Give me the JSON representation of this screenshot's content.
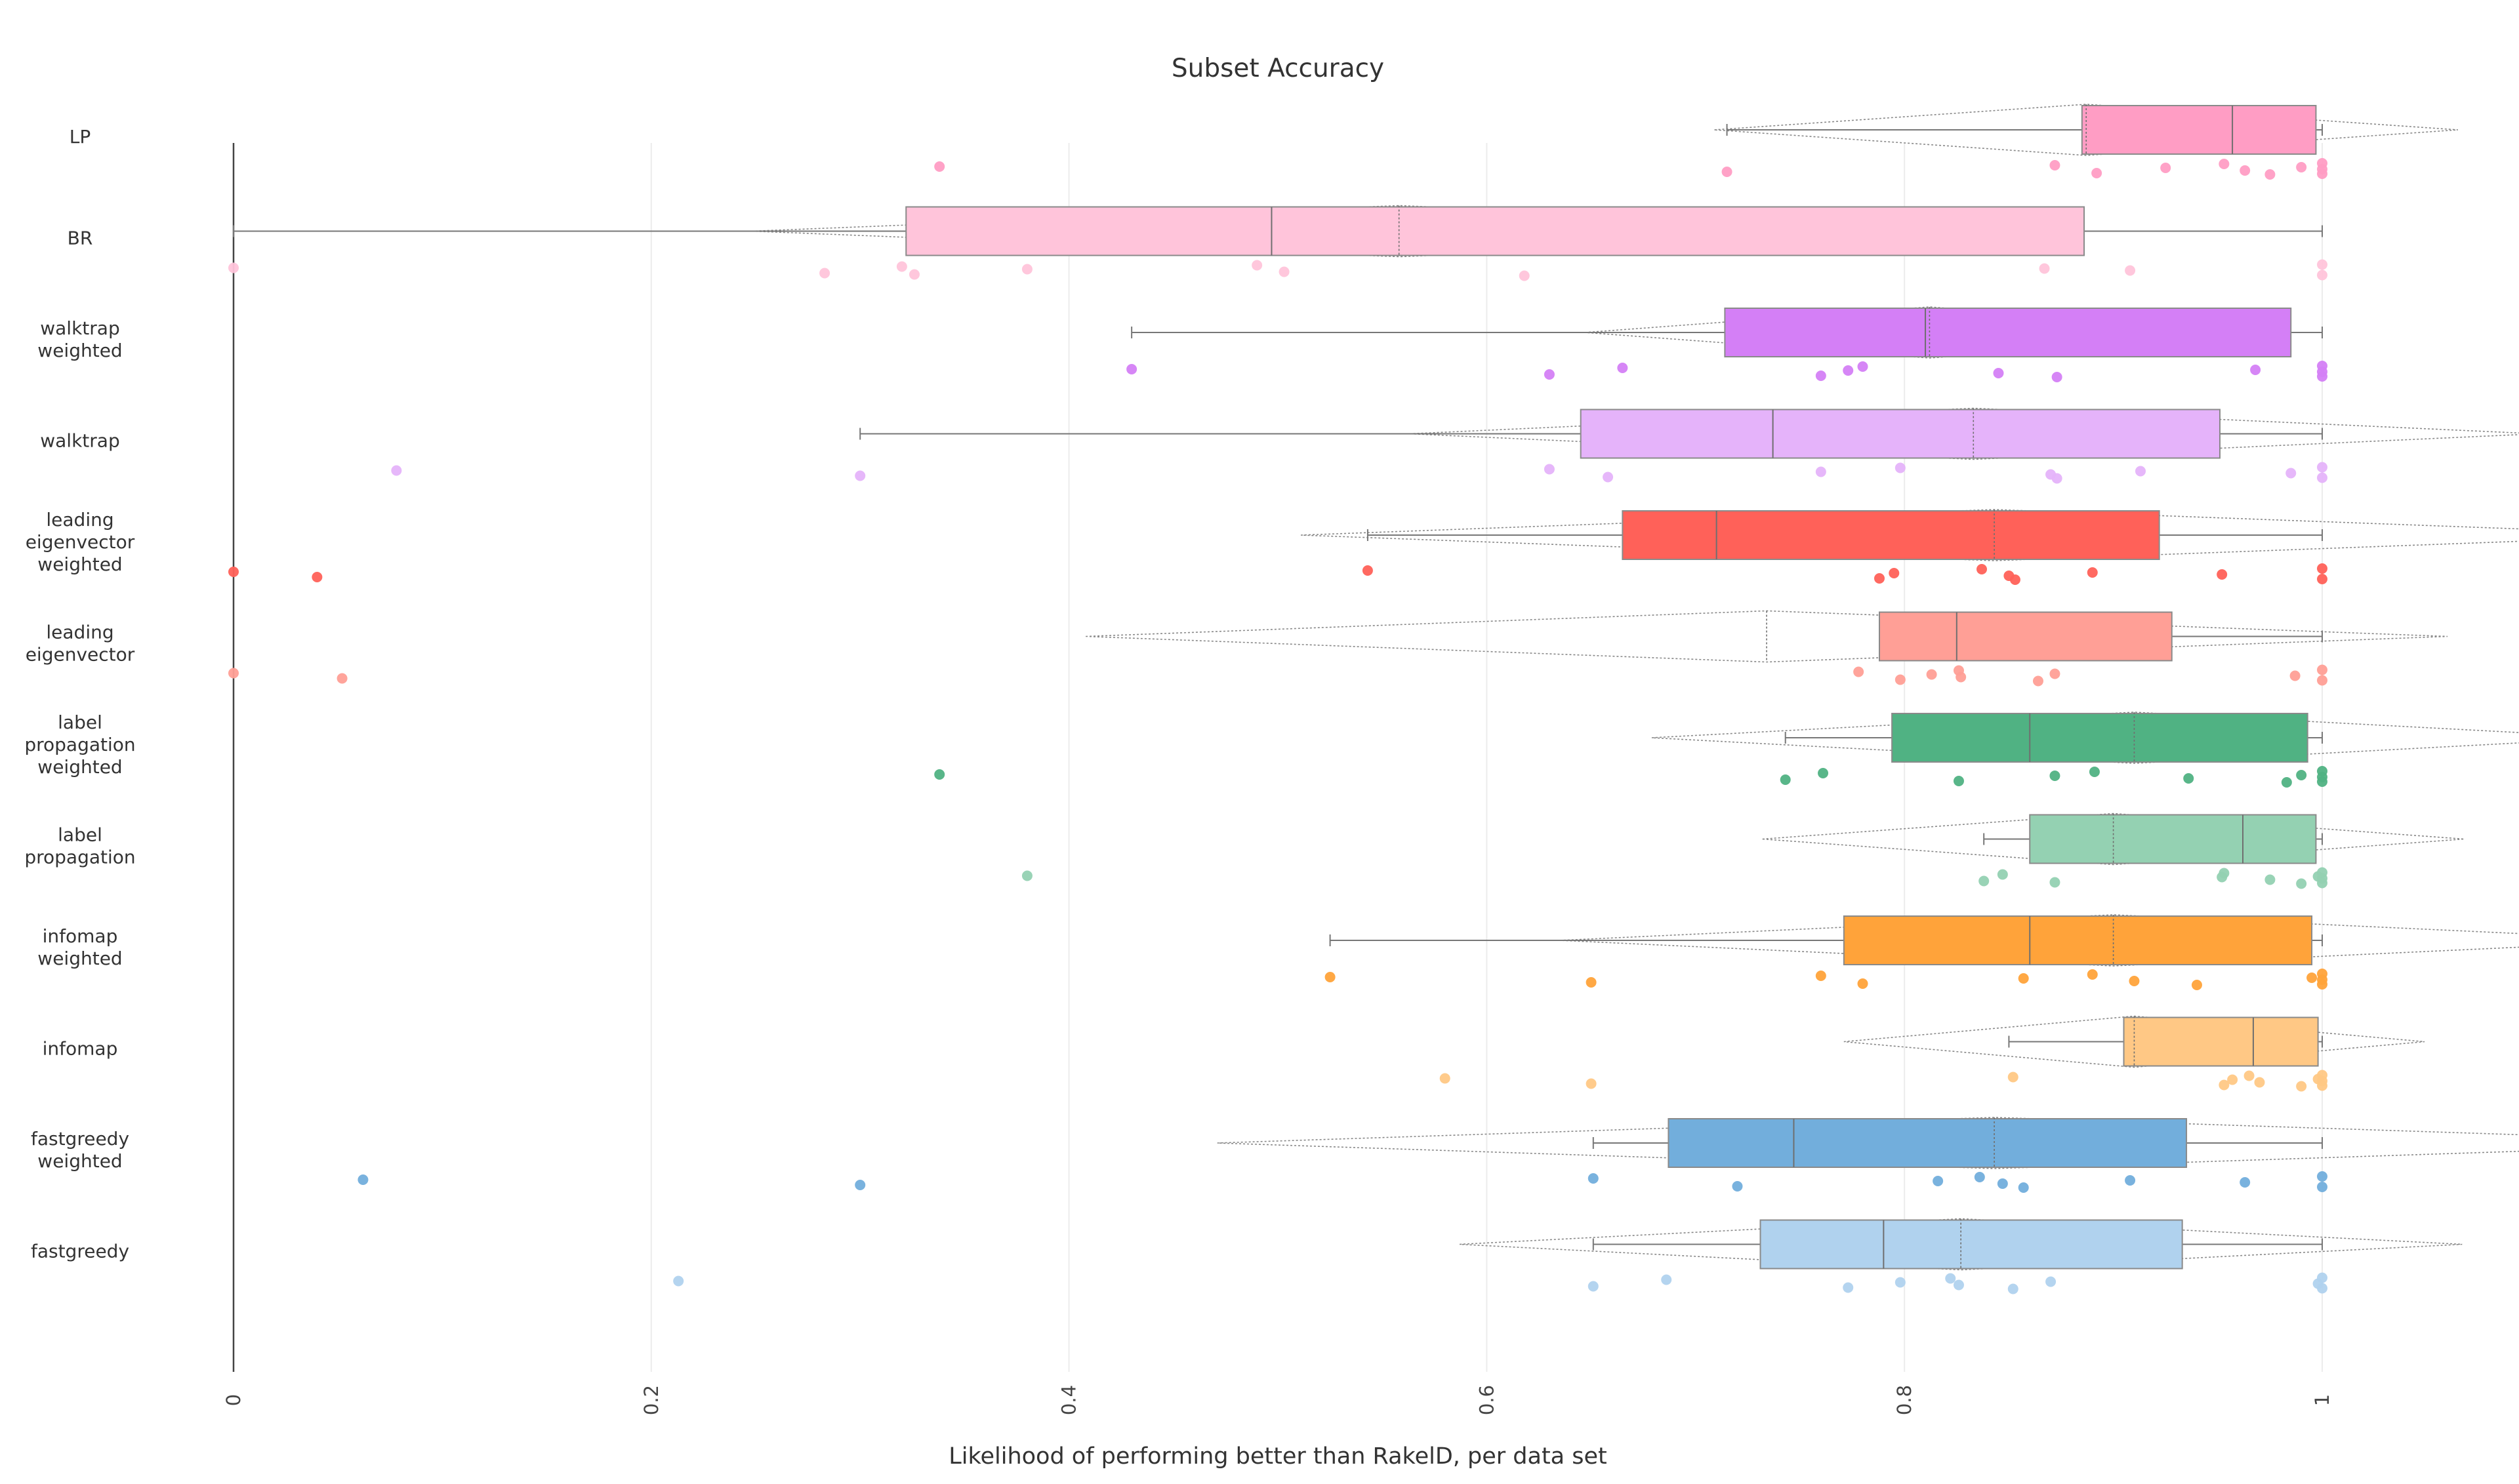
{
  "chart_data": {
    "type": "box",
    "title": "Subset Accuracy",
    "xlabel": "Likelihood of performing better than RakelD, per data set",
    "ylabel": "",
    "xlim": [
      0,
      1
    ],
    "x_ticks": [
      0,
      0.2,
      0.4,
      0.6,
      0.8,
      1
    ],
    "x_tick_labels": [
      "0",
      "0.2",
      "0.4",
      "0.6",
      "0.8",
      "1"
    ],
    "grid": true,
    "legend": "none",
    "orientation": "horizontal",
    "box_overlays": [
      "points",
      "mean-and-sd"
    ],
    "series": [
      {
        "label_lines": [
          "LP"
        ],
        "color": "#ff9dc4",
        "whisker_low": 0.715,
        "q1": 0.885,
        "median": 0.957,
        "q3": 0.997,
        "whisker_high": 1.0,
        "mean": 0.887,
        "sd": 0.178,
        "points": [
          0.338,
          0.715,
          0.872,
          0.892,
          0.925,
          0.953,
          0.963,
          0.975,
          0.99,
          1.0,
          1.0,
          1.0
        ]
      },
      {
        "label_lines": [
          "BR"
        ],
        "color": "#ffc4da",
        "whisker_low": 0.0,
        "q1": 0.322,
        "median": 0.497,
        "q3": 0.886,
        "whisker_high": 1.0,
        "mean": 0.558,
        "sd": 0.31,
        "points": [
          0.0,
          0.283,
          0.32,
          0.326,
          0.38,
          0.49,
          0.503,
          0.618,
          0.867,
          0.908,
          1.0,
          1.0
        ]
      },
      {
        "label_lines": [
          "walktrap",
          "weighted"
        ],
        "color": "#d47ff6",
        "whisker_low": 0.43,
        "q1": 0.714,
        "median": 0.81,
        "q3": 0.985,
        "whisker_high": 1.0,
        "mean": 0.812,
        "sd": 0.165,
        "points": [
          0.43,
          0.63,
          0.665,
          0.76,
          0.773,
          0.78,
          0.845,
          0.873,
          0.968,
          1.0,
          1.0,
          1.0
        ]
      },
      {
        "label_lines": [
          "walktrap"
        ],
        "color": "#e5b3fa",
        "whisker_low": 0.3,
        "q1": 0.645,
        "median": 0.737,
        "q3": 0.951,
        "whisker_high": 1.0,
        "mean": 0.833,
        "sd": 0.27,
        "points": [
          0.078,
          0.3,
          0.63,
          0.658,
          0.76,
          0.798,
          0.87,
          0.873,
          0.913,
          0.985,
          1.0,
          1.0
        ]
      },
      {
        "label_lines": [
          "leading",
          "eigenvector",
          "weighted"
        ],
        "color": "#ff6159",
        "whisker_low": 0.543,
        "q1": 0.665,
        "median": 0.71,
        "q3": 0.922,
        "whisker_high": 1.0,
        "mean": 0.843,
        "sd": 0.332,
        "points": [
          0.0,
          0.04,
          0.543,
          0.788,
          0.795,
          0.837,
          0.85,
          0.853,
          0.89,
          0.952,
          1.0,
          1.0
        ]
      },
      {
        "label_lines": [
          "leading",
          "eigenvector"
        ],
        "color": "#ff9f96",
        "whisker_low": 0.788,
        "q1": 0.788,
        "median": 0.825,
        "q3": 0.928,
        "whisker_high": 1.0,
        "mean": 0.734,
        "sd": 0.326,
        "points": [
          0.0,
          0.052,
          0.778,
          0.798,
          0.813,
          0.826,
          0.827,
          0.864,
          0.872,
          0.987,
          1.0,
          1.0
        ]
      },
      {
        "label_lines": [
          "label",
          "propagation",
          "weighted"
        ],
        "color": "#50b283",
        "whisker_low": 0.743,
        "q1": 0.794,
        "median": 0.86,
        "q3": 0.993,
        "whisker_high": 1.0,
        "mean": 0.91,
        "sd": 0.231,
        "points": [
          0.338,
          0.743,
          0.761,
          0.826,
          0.872,
          0.891,
          0.936,
          0.983,
          0.99,
          1.0,
          1.0,
          1.0
        ]
      },
      {
        "label_lines": [
          "label",
          "propagation"
        ],
        "color": "#94d1b2",
        "whisker_low": 0.838,
        "q1": 0.86,
        "median": 0.962,
        "q3": 0.997,
        "whisker_high": 1.0,
        "mean": 0.9,
        "sd": 0.168,
        "points": [
          0.38,
          0.838,
          0.847,
          0.872,
          0.952,
          0.953,
          0.975,
          0.99,
          0.998,
          1.0,
          1.0,
          1.0
        ]
      },
      {
        "label_lines": [
          "infomap",
          "weighted"
        ],
        "color": "#ffa33a",
        "whisker_low": 0.525,
        "q1": 0.771,
        "median": 0.86,
        "q3": 0.995,
        "whisker_high": 1.0,
        "mean": 0.9,
        "sd": 0.265,
        "points": [
          0.525,
          0.65,
          0.76,
          0.78,
          0.857,
          0.89,
          0.91,
          0.94,
          0.995,
          1.0,
          1.0,
          1.0
        ]
      },
      {
        "label_lines": [
          "infomap"
        ],
        "color": "#ffc885",
        "whisker_low": 0.85,
        "q1": 0.905,
        "median": 0.967,
        "q3": 0.998,
        "whisker_high": 1.0,
        "mean": 0.91,
        "sd": 0.139,
        "points": [
          0.58,
          0.65,
          0.852,
          0.953,
          0.957,
          0.965,
          0.97,
          0.99,
          0.998,
          1.0,
          1.0,
          1.0
        ]
      },
      {
        "label_lines": [
          "fastgreedy",
          "weighted"
        ],
        "color": "#72aedc",
        "whisker_low": 0.651,
        "q1": 0.687,
        "median": 0.747,
        "q3": 0.935,
        "whisker_high": 1.0,
        "mean": 0.843,
        "sd": 0.372,
        "points": [
          0.062,
          0.3,
          0.651,
          0.72,
          0.816,
          0.836,
          0.847,
          0.857,
          0.908,
          0.963,
          1.0,
          1.0
        ]
      },
      {
        "label_lines": [
          "fastgreedy"
        ],
        "color": "#b0d2ee",
        "whisker_low": 0.651,
        "q1": 0.731,
        "median": 0.79,
        "q3": 0.933,
        "whisker_high": 1.0,
        "mean": 0.827,
        "sd": 0.24,
        "points": [
          0.213,
          0.651,
          0.686,
          0.773,
          0.798,
          0.822,
          0.826,
          0.852,
          0.87,
          0.998,
          1.0,
          1.0
        ]
      }
    ]
  }
}
